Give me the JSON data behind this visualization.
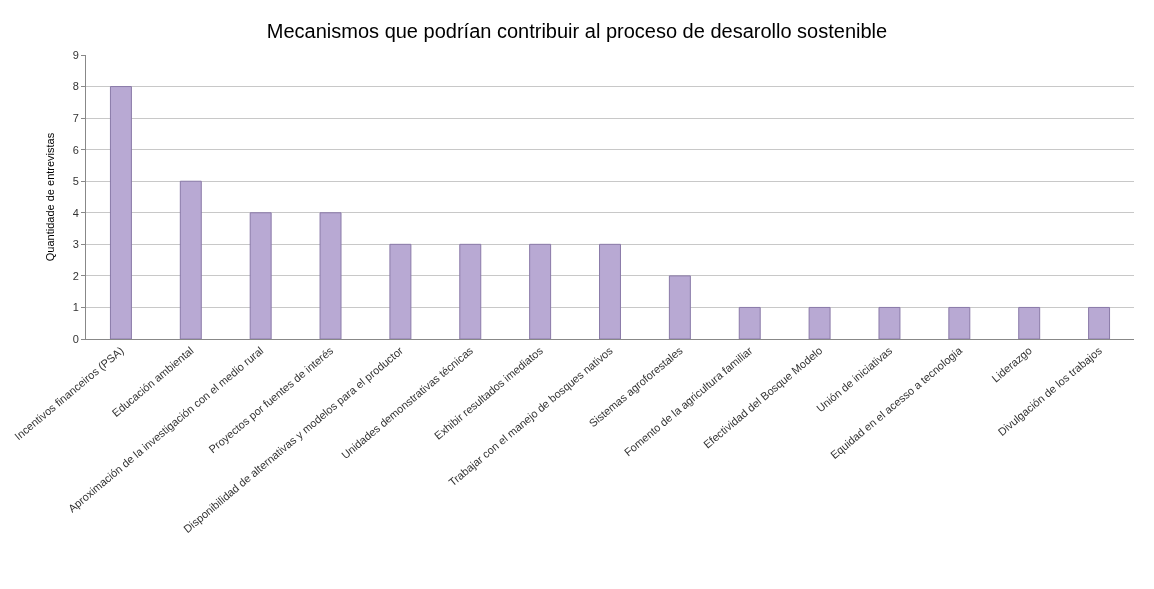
{
  "chart_data": {
    "type": "bar",
    "title": "Mecanismos que podrían contribuir al proceso de desarollo sostenible",
    "ylabel": "Quantidade de entrevistas",
    "categories": [
      "Incentivos financeiros (PSA)",
      "Educación ambiental",
      "Aproximación de la investigación con el medio rural",
      "Proyectos por fuentes de interés",
      "Disponibilidad de alternativas y modelos para el productor",
      "Unidades demonstrativas técnicas",
      "Exhibir resultados imediatos",
      "Trabajar con el manejo de bosques nativos",
      "Sistemas agroforestales",
      "Fomento de la agricultura familiar",
      "Efectividad del Bosque Modelo",
      "Unión de iniciativas",
      "Equidad en el acesso a tecnologia",
      "Liderazgo",
      "Divulgación de los trabajos"
    ],
    "values": [
      8,
      5,
      4,
      4,
      3,
      3,
      3,
      3,
      2,
      1,
      1,
      1,
      1,
      1,
      1
    ],
    "color": "#b8a9d3",
    "ylim": [
      0,
      9
    ],
    "yticks": [
      0,
      1,
      2,
      3,
      4,
      5,
      6,
      7,
      8,
      9
    ],
    "grid": "y"
  }
}
